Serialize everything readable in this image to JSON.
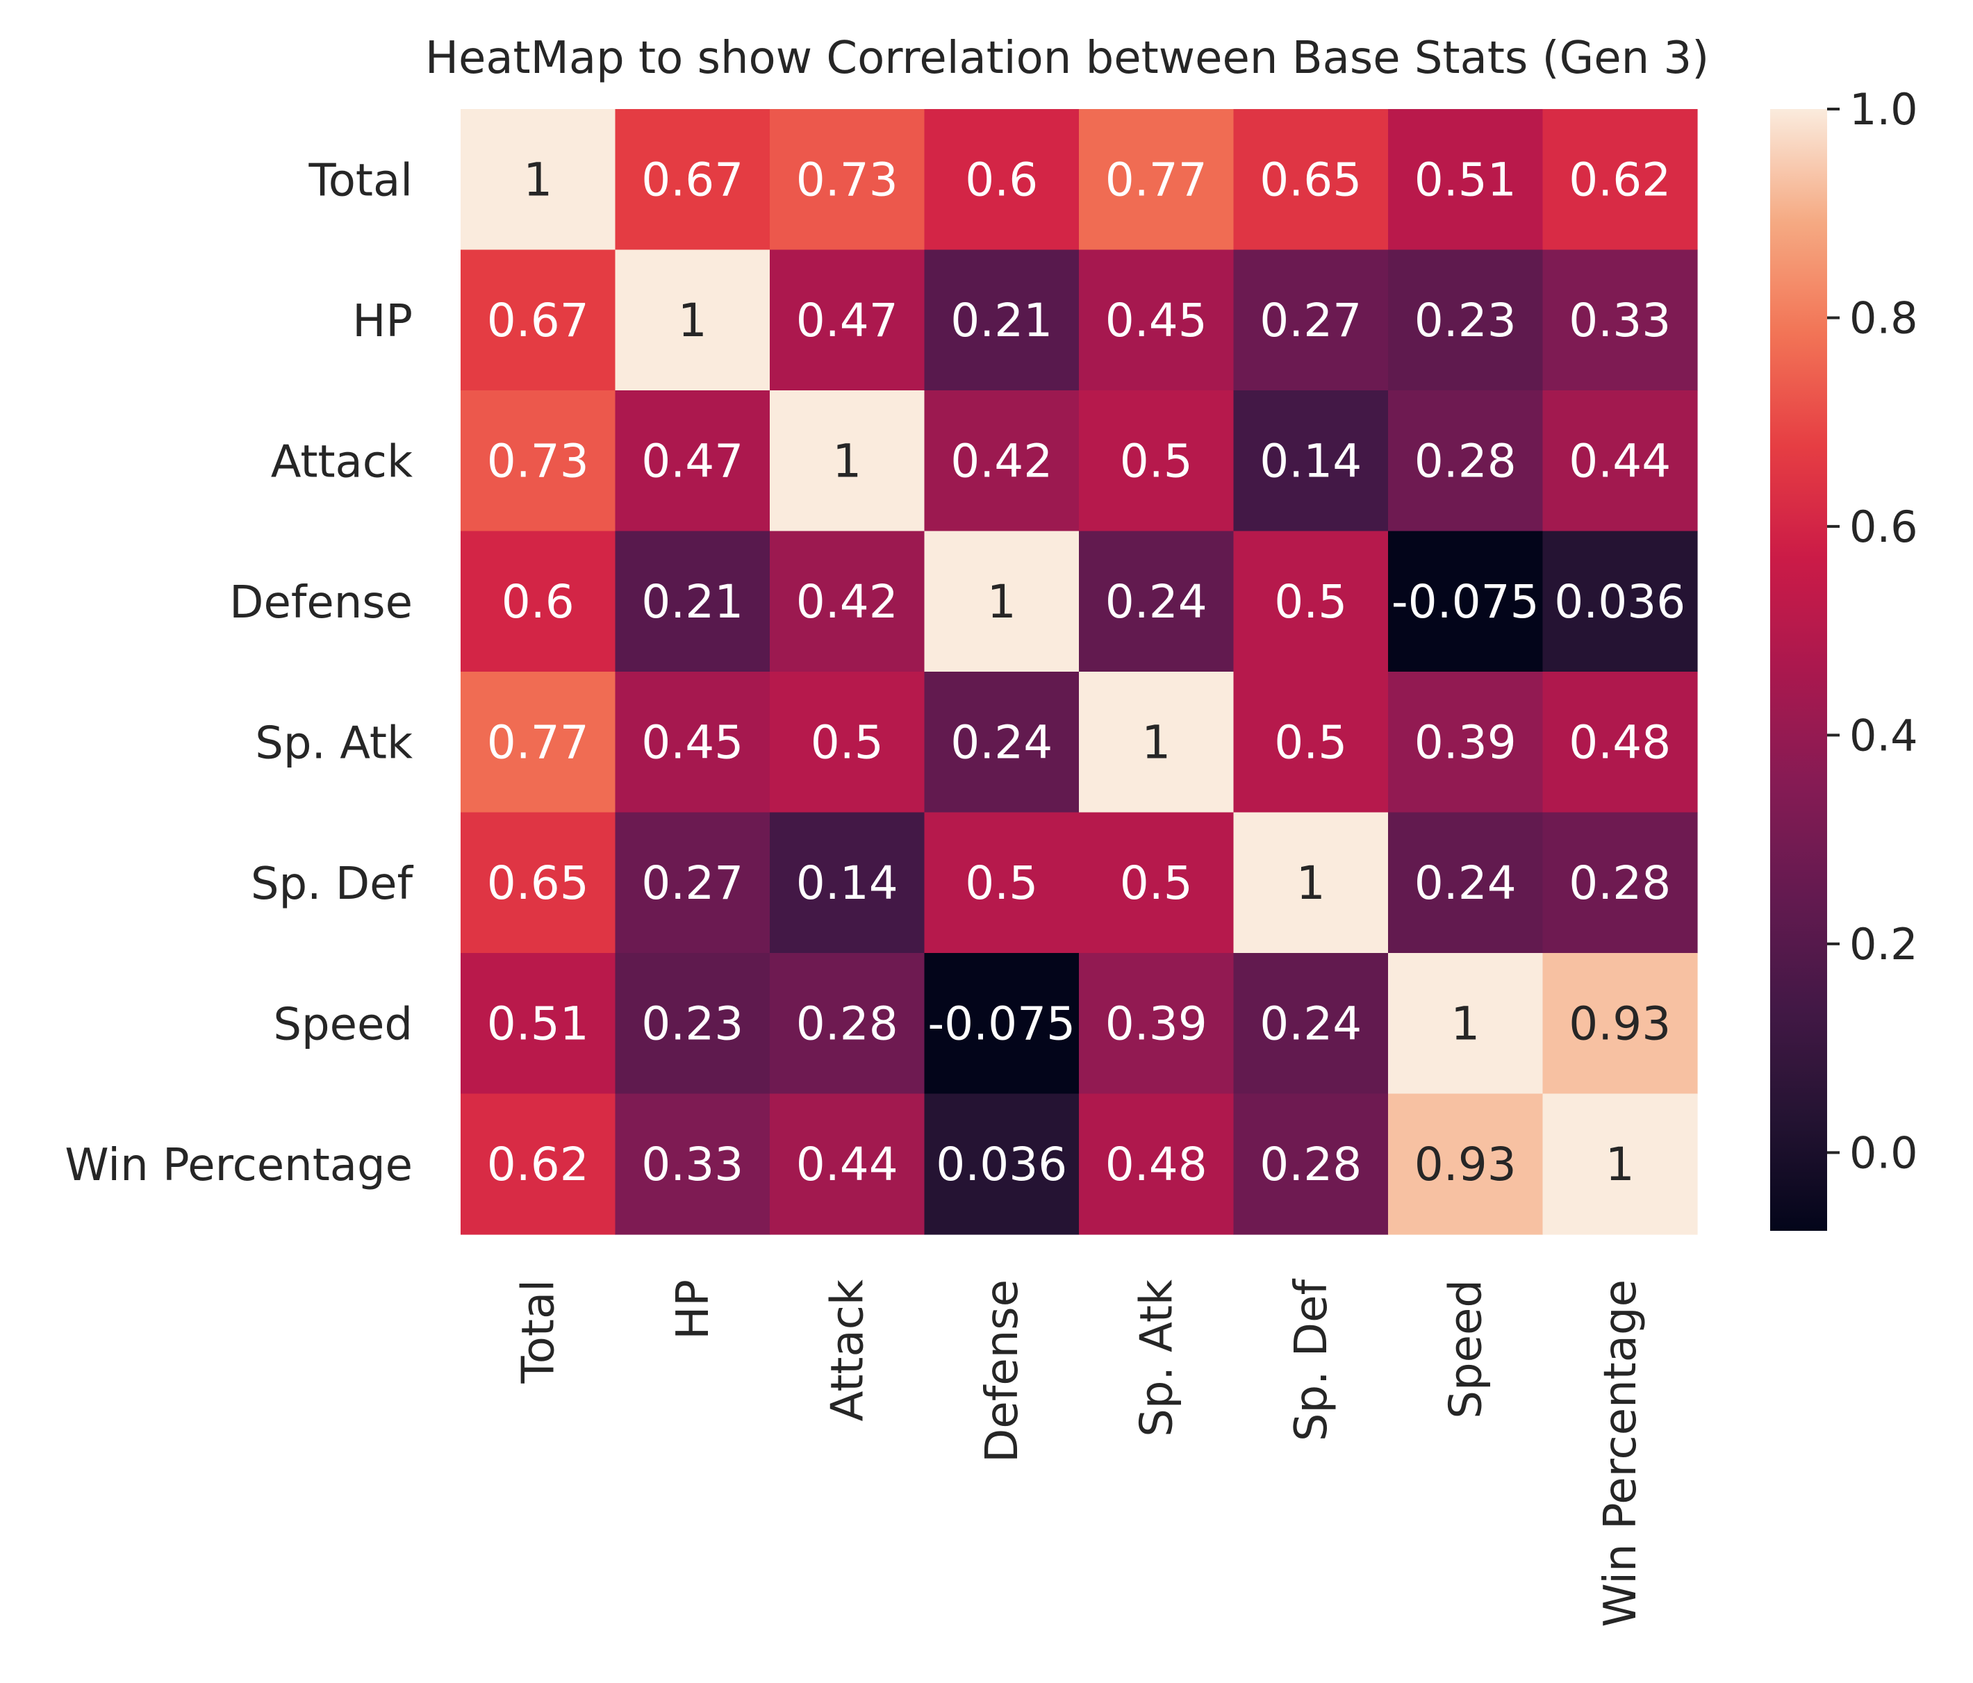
{
  "chart_data": {
    "type": "heatmap",
    "title": "HeatMap to show Correlation between Base Stats (Gen 3)",
    "x_labels": [
      "Total",
      "HP",
      "Attack",
      "Defense",
      "Sp. Atk",
      "Sp. Def",
      "Speed",
      "Win Percentage"
    ],
    "y_labels": [
      "Total",
      "HP",
      "Attack",
      "Defense",
      "Sp. Atk",
      "Sp. Def",
      "Speed",
      "Win Percentage"
    ],
    "values": [
      [
        1,
        0.67,
        0.73,
        0.6,
        0.77,
        0.65,
        0.51,
        0.62
      ],
      [
        0.67,
        1,
        0.47,
        0.21,
        0.45,
        0.27,
        0.23,
        0.33
      ],
      [
        0.73,
        0.47,
        1,
        0.42,
        0.5,
        0.14,
        0.28,
        0.44
      ],
      [
        0.6,
        0.21,
        0.42,
        1,
        0.24,
        0.5,
        -0.075,
        0.036
      ],
      [
        0.77,
        0.45,
        0.5,
        0.24,
        1,
        0.5,
        0.39,
        0.48
      ],
      [
        0.65,
        0.27,
        0.14,
        0.5,
        0.5,
        1,
        0.24,
        0.28
      ],
      [
        0.51,
        0.23,
        0.28,
        -0.075,
        0.39,
        0.24,
        1,
        0.93
      ],
      [
        0.62,
        0.33,
        0.44,
        0.036,
        0.48,
        0.28,
        0.93,
        1
      ]
    ],
    "annotations": [
      [
        "1",
        "0.67",
        "0.73",
        "0.6",
        "0.77",
        "0.65",
        "0.51",
        "0.62"
      ],
      [
        "0.67",
        "1",
        "0.47",
        "0.21",
        "0.45",
        "0.27",
        "0.23",
        "0.33"
      ],
      [
        "0.73",
        "0.47",
        "1",
        "0.42",
        "0.5",
        "0.14",
        "0.28",
        "0.44"
      ],
      [
        "0.6",
        "0.21",
        "0.42",
        "1",
        "0.24",
        "0.5",
        "-0.075",
        "0.036"
      ],
      [
        "0.77",
        "0.45",
        "0.5",
        "0.24",
        "1",
        "0.5",
        "0.39",
        "0.48"
      ],
      [
        "0.65",
        "0.27",
        "0.14",
        "0.5",
        "0.5",
        "1",
        "0.24",
        "0.28"
      ],
      [
        "0.51",
        "0.23",
        "0.28",
        "-0.075",
        "0.39",
        "0.24",
        "1",
        "0.93"
      ],
      [
        "0.62",
        "0.33",
        "0.44",
        "0.036",
        "0.48",
        "0.28",
        "0.93",
        "1"
      ]
    ],
    "colorbar": {
      "ticks": [
        0.0,
        0.2,
        0.4,
        0.6,
        0.8,
        1.0
      ],
      "tick_labels": [
        "0.0",
        "0.2",
        "0.4",
        "0.6",
        "0.8",
        "1.0"
      ],
      "range": [
        -0.075,
        1.0
      ]
    },
    "colormap": "rocket",
    "grid": false
  }
}
